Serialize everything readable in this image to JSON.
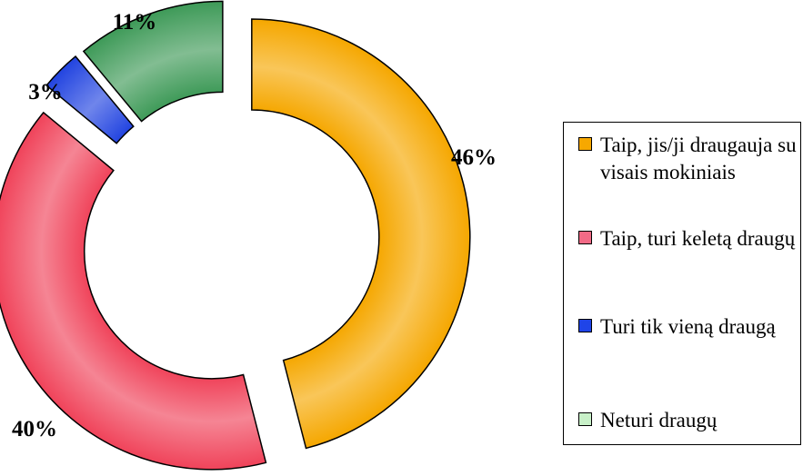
{
  "chart_data": {
    "type": "pie",
    "subtype": "exploded-doughnut",
    "categories": [
      "Taip, jis/ji draugauja su visais mokiniais",
      "Taip, turi keletą draugų",
      "Turi tik vieną draugą",
      "Neturi draugų"
    ],
    "values": [
      46,
      40,
      3,
      11
    ],
    "labels": [
      "46%",
      "40%",
      "3%",
      "11%"
    ],
    "colors": [
      "#F5A700",
      "#F0435A",
      "#2244E0",
      "#3E9A58"
    ],
    "legend_swatch_colors": [
      "#F7A800",
      "#F26A86",
      "#1F44E8",
      "#C8F0C8"
    ],
    "legend_position": "right"
  }
}
